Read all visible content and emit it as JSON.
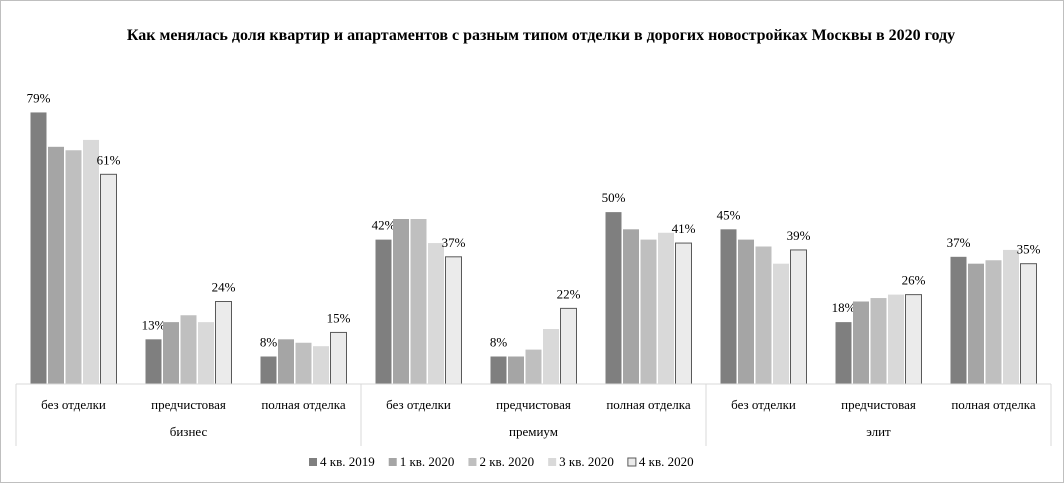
{
  "chart_data": {
    "type": "bar",
    "title": "Как менялась доля квартир и апартаментов с разным типом отделки в дорогих новостройках Москвы в 2020 году",
    "groups": [
      "бизнес",
      "премиум",
      "элит"
    ],
    "categories": [
      "без отделки",
      "предчистовая",
      "полная отделка",
      "без отделки",
      "предчистовая",
      "полная отделка",
      "без отделки",
      "предчистовая",
      "полная отделка"
    ],
    "ylim": [
      0,
      80
    ],
    "series": [
      {
        "name": "4 кв. 2019",
        "color": "#7f7f7f",
        "values": [
          79,
          13,
          8,
          42,
          8,
          50,
          45,
          18,
          37
        ],
        "value_labels": [
          "79%",
          "13%",
          "8%",
          "42%",
          "8%",
          "50%",
          "45%",
          "18%",
          "37%"
        ]
      },
      {
        "name": "1 кв. 2020",
        "color": "#a5a5a5",
        "values": [
          69,
          18,
          13,
          48,
          8,
          45,
          42,
          24,
          35
        ]
      },
      {
        "name": "2 кв. 2020",
        "color": "#bfbfbf",
        "values": [
          68,
          20,
          12,
          48,
          10,
          42,
          40,
          25,
          36
        ]
      },
      {
        "name": "3 кв. 2020",
        "color": "#d9d9d9",
        "values": [
          71,
          18,
          11,
          41,
          16,
          44,
          35,
          26,
          39
        ]
      },
      {
        "name": "4 кв. 2020",
        "color": "#ebebeb",
        "values": [
          61,
          24,
          15,
          37,
          22,
          41,
          39,
          26,
          35
        ],
        "value_labels": [
          "61%",
          "24%",
          "15%",
          "37%",
          "22%",
          "41%",
          "39%",
          "26%",
          "35%"
        ]
      }
    ]
  }
}
